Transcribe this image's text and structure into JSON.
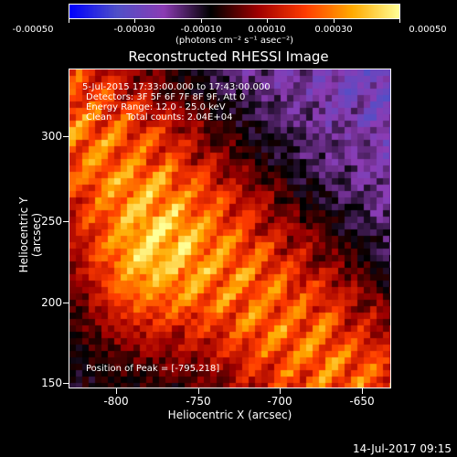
{
  "colorbar": {
    "tick_labels": [
      "-0.00050",
      "-0.00030",
      "-0.00010",
      "0.00010",
      "0.00030",
      "0.00050"
    ],
    "units": "(photons cm⁻² s⁻¹ asec⁻²)"
  },
  "title": "Reconstructed RHESSI Image",
  "annotations": {
    "time": "5-Jul-2015 17:33:00.000 to 17:43:00.000",
    "detectors": "Detectors: 3F 5F 6F 7F 8F 9F, Att 0",
    "energy": "Energy Range: 12.0 - 25.0 keV",
    "clean": "Clean     Total counts: 2.04E+04",
    "peak": "Position of Peak = [-795,218]"
  },
  "axes": {
    "xlabel": "Heliocentric X (arcsec)",
    "ylabel": "Heliocentric Y (arcsec)",
    "x_ticks": [
      "-800",
      "-750",
      "-700",
      "-650"
    ],
    "y_ticks": [
      "300",
      "250",
      "200",
      "150"
    ],
    "xlim": [
      -828,
      -632
    ],
    "ylim": [
      148,
      326
    ]
  },
  "footer": "14-Jul-2017 09:15",
  "colors": {
    "colormap": [
      "#0000ff",
      "#5050c8",
      "#8c3cb4",
      "#000000",
      "#a00000",
      "#ff3c00",
      "#ffaa00",
      "#ffff96"
    ]
  }
}
